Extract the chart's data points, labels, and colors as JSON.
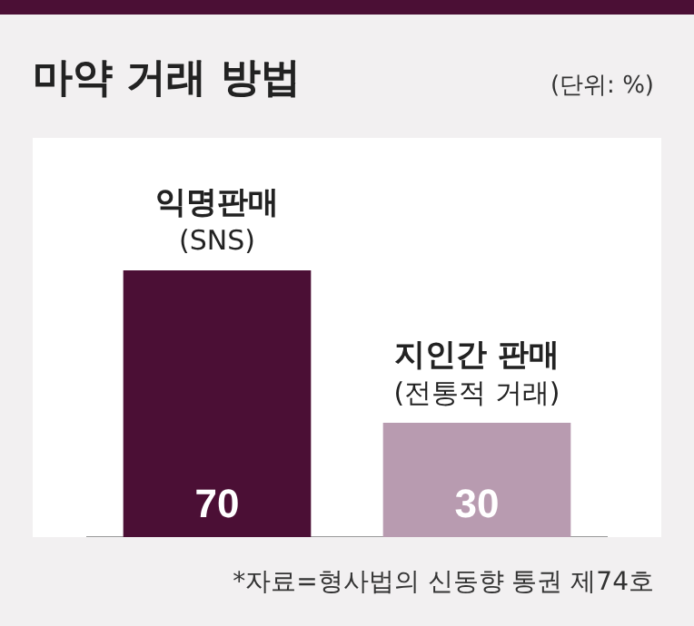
{
  "chart_data": {
    "type": "bar",
    "title": "마약 거래 방법",
    "subtitle": "(단위: %)",
    "categories": [
      "익명판매\n(SNS)",
      "지인간 판매\n(전통적 거래)"
    ],
    "values": [
      70,
      30
    ],
    "colors": [
      "#4b0f35",
      "#b89bb0"
    ],
    "data_labels": true,
    "grid": false,
    "legend": false,
    "annotations": [
      "*자료=형사법의 신동향 통권 제74호"
    ]
  }
}
